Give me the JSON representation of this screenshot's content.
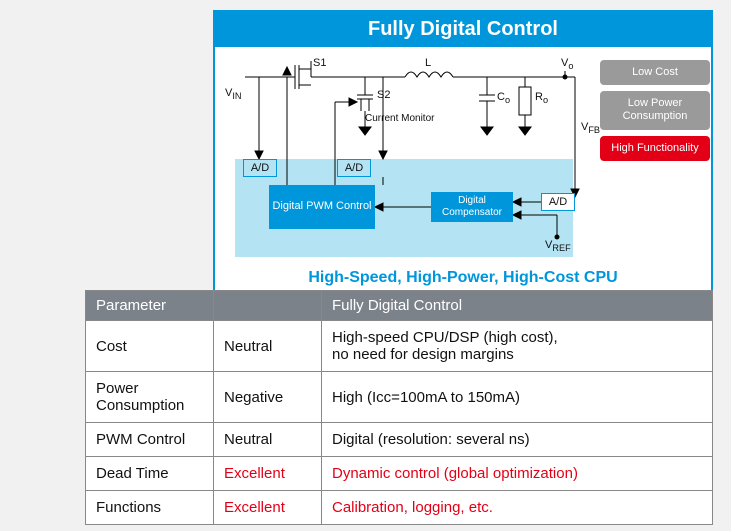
{
  "title": "Fully Digital Control",
  "subtitle": "High-Speed, High-Power, High-Cost CPU",
  "badges": [
    {
      "text": "Low Cost",
      "cls": "grey"
    },
    {
      "text": "Low Power Consumption",
      "cls": "grey"
    },
    {
      "text": "High Functionality",
      "cls": "red"
    }
  ],
  "diagram": {
    "labels": {
      "vin": "V",
      "s1": "S1",
      "s2": "S2",
      "L": "L",
      "Co": "C",
      "Ro": "R",
      "Vo": "V",
      "vfb": "V",
      "vref": "V",
      "cm": "Current Monitor",
      "ad": "A/D",
      "pwm": "Digital PWM Control",
      "comp": "Digital Compensator"
    },
    "colors": {
      "accent": "#0096db",
      "digital_bg": "#b4e3f4",
      "wire": "#000000",
      "background": "#ffffff"
    },
    "line_width": 1
  },
  "table": {
    "headers": [
      "Parameter",
      "",
      "Fully Digital Control"
    ],
    "rows": [
      {
        "param": "Cost",
        "rating": "Neutral",
        "desc": "High-speed CPU/DSP (high cost),\nno need for design margins",
        "red": false
      },
      {
        "param": "Power Consumption",
        "rating": "Negative",
        "desc": "High (Icc=100mA to 150mA)",
        "red": false
      },
      {
        "param": "PWM Control",
        "rating": "Neutral",
        "desc": "Digital (resolution: several ns)",
        "red": false
      },
      {
        "param": "Dead Time",
        "rating": "Excellent",
        "desc": "Dynamic control (global optimization)",
        "red": true
      },
      {
        "param": "Functions",
        "rating": "Excellent",
        "desc": "Calibration, logging, etc.",
        "red": true
      }
    ]
  }
}
